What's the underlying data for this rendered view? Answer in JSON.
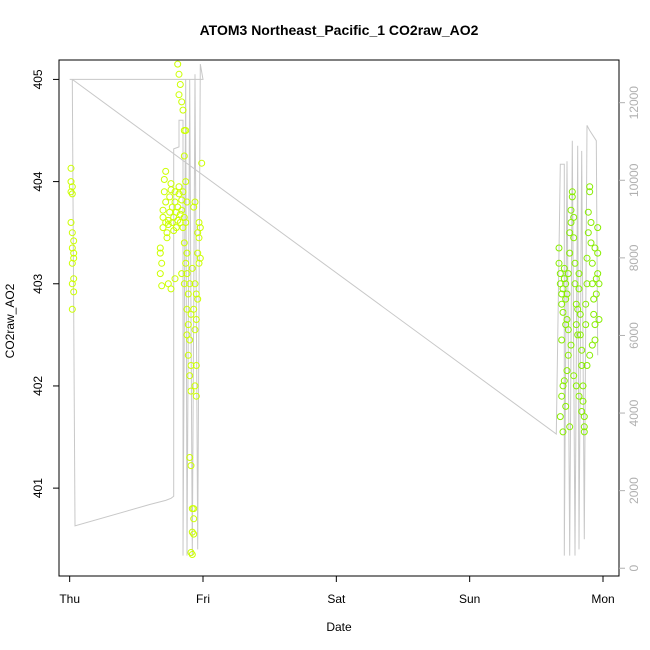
{
  "chart_data": {
    "type": "scatter",
    "title": "ATOM3 Northeast_Pacific_1 CO2raw_AO2",
    "xlabel": "Date",
    "ylabel": "CO2raw_AO2",
    "xlim": [
      -0.08,
      4.12
    ],
    "ylim": [
      400.14,
      405.19
    ],
    "x_ticks": [
      {
        "value": 0,
        "label": "Thu"
      },
      {
        "value": 1,
        "label": "Fri"
      },
      {
        "value": 2,
        "label": "Sat"
      },
      {
        "value": 3,
        "label": "Sun"
      },
      {
        "value": 4,
        "label": "Mon"
      }
    ],
    "y_ticks": [
      401,
      402,
      403,
      404,
      405
    ],
    "y2_ticks": [
      0,
      2000,
      4000,
      6000,
      8000,
      10000,
      12000
    ],
    "y2lim": [
      -200,
      13100
    ],
    "colors": {
      "points_early": "#ccff00",
      "points_late": "#88ee00",
      "line": "#c8c8c8",
      "axis": "#000000",
      "axis_right": "#b0b0b0"
    },
    "secondary_line": [
      [
        0.0,
        405.0
      ],
      [
        0.02,
        405.0
      ],
      [
        0.04,
        400.63
      ],
      [
        0.6,
        400.84
      ],
      [
        0.72,
        400.88
      ],
      [
        0.76,
        400.9
      ],
      [
        0.78,
        400.92
      ],
      [
        0.78,
        404.32
      ],
      [
        0.82,
        404.34
      ],
      [
        0.82,
        404.6
      ],
      [
        0.85,
        404.6
      ],
      [
        0.85,
        400.34
      ],
      [
        0.87,
        405.0
      ],
      [
        0.88,
        400.34
      ],
      [
        0.9,
        405.0
      ],
      [
        0.92,
        400.34
      ],
      [
        0.94,
        405.05
      ],
      [
        0.96,
        400.4
      ],
      [
        0.98,
        405.15
      ],
      [
        1.0,
        405.0
      ],
      [
        0.02,
        405.0
      ],
      [
        3.65,
        401.53
      ],
      [
        3.68,
        404.17
      ],
      [
        3.71,
        404.17
      ],
      [
        3.71,
        400.34
      ],
      [
        3.73,
        404.2
      ],
      [
        3.75,
        400.34
      ],
      [
        3.77,
        404.4
      ],
      [
        3.79,
        400.34
      ],
      [
        3.81,
        404.35
      ],
      [
        3.82,
        400.4
      ],
      [
        3.84,
        404.3
      ],
      [
        3.86,
        400.5
      ],
      [
        3.88,
        404.55
      ],
      [
        3.9,
        404.5
      ],
      [
        3.95,
        404.4
      ],
      [
        3.96,
        402.3
      ]
    ],
    "series": [
      {
        "values": [
          [
            0.01,
            404.13
          ],
          [
            0.01,
            404.0
          ],
          [
            0.02,
            403.95
          ],
          [
            0.02,
            403.88
          ],
          [
            0.01,
            403.6
          ],
          [
            0.02,
            403.5
          ],
          [
            0.03,
            403.42
          ],
          [
            0.02,
            403.35
          ],
          [
            0.03,
            403.3
          ],
          [
            0.02,
            403.2
          ],
          [
            0.03,
            403.05
          ],
          [
            0.02,
            403.0
          ],
          [
            0.03,
            402.92
          ],
          [
            0.02,
            402.75
          ],
          [
            0.03,
            403.25
          ],
          [
            0.01,
            403.9
          ],
          [
            0.68,
            403.35
          ],
          [
            0.68,
            403.3
          ],
          [
            0.69,
            403.2
          ],
          [
            0.68,
            403.1
          ],
          [
            0.69,
            402.98
          ],
          [
            0.7,
            403.55
          ],
          [
            0.7,
            403.65
          ],
          [
            0.7,
            403.72
          ],
          [
            0.71,
            403.9
          ],
          [
            0.71,
            404.02
          ],
          [
            0.72,
            404.1
          ],
          [
            0.72,
            403.8
          ],
          [
            0.72,
            403.6
          ],
          [
            0.73,
            403.5
          ],
          [
            0.73,
            403.45
          ],
          [
            0.74,
            403.58
          ],
          [
            0.74,
            403.62
          ],
          [
            0.75,
            403.7
          ],
          [
            0.75,
            403.85
          ],
          [
            0.76,
            403.92
          ],
          [
            0.76,
            403.98
          ],
          [
            0.77,
            403.75
          ],
          [
            0.77,
            403.6
          ],
          [
            0.78,
            403.52
          ],
          [
            0.78,
            403.65
          ],
          [
            0.79,
            403.8
          ],
          [
            0.79,
            403.9
          ],
          [
            0.8,
            403.7
          ],
          [
            0.8,
            403.55
          ],
          [
            0.81,
            403.62
          ],
          [
            0.81,
            403.75
          ],
          [
            0.82,
            403.88
          ],
          [
            0.82,
            403.95
          ],
          [
            0.83,
            403.68
          ],
          [
            0.83,
            403.6
          ],
          [
            0.84,
            403.72
          ],
          [
            0.84,
            403.82
          ],
          [
            0.85,
            403.9
          ],
          [
            0.85,
            403.55
          ],
          [
            0.86,
            403.65
          ],
          [
            0.86,
            403.0
          ],
          [
            0.74,
            403.0
          ],
          [
            0.76,
            402.95
          ],
          [
            0.79,
            403.05
          ],
          [
            0.84,
            403.1
          ],
          [
            0.81,
            405.15
          ],
          [
            0.82,
            405.05
          ],
          [
            0.83,
            404.95
          ],
          [
            0.82,
            404.85
          ],
          [
            0.84,
            404.78
          ],
          [
            0.85,
            404.7
          ],
          [
            0.86,
            404.5
          ],
          [
            0.87,
            404.5
          ],
          [
            0.86,
            404.25
          ],
          [
            0.87,
            404.0
          ],
          [
            0.88,
            403.8
          ],
          [
            0.87,
            403.6
          ],
          [
            0.86,
            403.4
          ],
          [
            0.88,
            403.3
          ],
          [
            0.87,
            403.2
          ],
          [
            0.88,
            403.1
          ],
          [
            0.89,
            402.9
          ],
          [
            0.88,
            402.75
          ],
          [
            0.89,
            402.6
          ],
          [
            0.88,
            402.5
          ],
          [
            0.9,
            402.45
          ],
          [
            0.89,
            402.3
          ],
          [
            0.91,
            402.2
          ],
          [
            0.9,
            402.1
          ],
          [
            0.91,
            401.95
          ],
          [
            0.9,
            401.3
          ],
          [
            0.91,
            401.22
          ],
          [
            0.92,
            400.8
          ],
          [
            0.93,
            400.8
          ],
          [
            0.93,
            400.7
          ],
          [
            0.92,
            400.57
          ],
          [
            0.93,
            400.55
          ],
          [
            0.91,
            400.37
          ],
          [
            0.92,
            400.35
          ],
          [
            0.94,
            402.55
          ],
          [
            0.95,
            402.2
          ],
          [
            0.94,
            402.0
          ],
          [
            0.95,
            401.9
          ],
          [
            0.94,
            403.0
          ],
          [
            0.95,
            402.9
          ],
          [
            0.96,
            402.85
          ],
          [
            0.96,
            403.3
          ],
          [
            0.97,
            403.2
          ],
          [
            0.96,
            403.5
          ],
          [
            0.97,
            403.45
          ],
          [
            0.98,
            403.55
          ],
          [
            0.97,
            403.6
          ],
          [
            0.98,
            403.25
          ],
          [
            0.99,
            404.18
          ],
          [
            0.93,
            403.75
          ],
          [
            0.94,
            403.8
          ],
          [
            0.9,
            403.0
          ],
          [
            0.92,
            403.15
          ],
          [
            0.93,
            402.75
          ],
          [
            0.95,
            402.65
          ],
          [
            0.91,
            402.7
          ]
        ]
      },
      {
        "values": [
          [
            3.67,
            403.35
          ],
          [
            3.67,
            403.2
          ],
          [
            3.68,
            403.1
          ],
          [
            3.68,
            403.0
          ],
          [
            3.69,
            402.9
          ],
          [
            3.69,
            402.8
          ],
          [
            3.7,
            402.72
          ],
          [
            3.7,
            402.95
          ],
          [
            3.71,
            403.05
          ],
          [
            3.71,
            403.15
          ],
          [
            3.72,
            403.0
          ],
          [
            3.72,
            402.85
          ],
          [
            3.73,
            402.9
          ],
          [
            3.73,
            402.65
          ],
          [
            3.74,
            402.55
          ],
          [
            3.74,
            403.1
          ],
          [
            3.75,
            403.3
          ],
          [
            3.75,
            403.5
          ],
          [
            3.76,
            403.6
          ],
          [
            3.76,
            403.72
          ],
          [
            3.77,
            403.85
          ],
          [
            3.77,
            403.9
          ],
          [
            3.78,
            403.65
          ],
          [
            3.78,
            403.45
          ],
          [
            3.79,
            403.2
          ],
          [
            3.79,
            403.0
          ],
          [
            3.8,
            402.8
          ],
          [
            3.8,
            402.6
          ],
          [
            3.81,
            402.5
          ],
          [
            3.81,
            402.75
          ],
          [
            3.82,
            402.95
          ],
          [
            3.82,
            403.1
          ],
          [
            3.83,
            402.7
          ],
          [
            3.83,
            402.5
          ],
          [
            3.84,
            402.35
          ],
          [
            3.84,
            402.2
          ],
          [
            3.85,
            402.0
          ],
          [
            3.85,
            401.85
          ],
          [
            3.86,
            401.7
          ],
          [
            3.86,
            401.55
          ],
          [
            3.87,
            402.6
          ],
          [
            3.87,
            402.8
          ],
          [
            3.88,
            403.0
          ],
          [
            3.88,
            403.25
          ],
          [
            3.89,
            403.5
          ],
          [
            3.89,
            403.7
          ],
          [
            3.9,
            403.9
          ],
          [
            3.9,
            403.95
          ],
          [
            3.91,
            403.6
          ],
          [
            3.91,
            403.4
          ],
          [
            3.92,
            403.2
          ],
          [
            3.92,
            403.0
          ],
          [
            3.93,
            402.85
          ],
          [
            3.93,
            402.7
          ],
          [
            3.94,
            402.6
          ],
          [
            3.94,
            402.45
          ],
          [
            3.95,
            402.9
          ],
          [
            3.95,
            403.05
          ],
          [
            3.96,
            403.3
          ],
          [
            3.96,
            403.55
          ],
          [
            3.97,
            403.0
          ],
          [
            3.97,
            402.65
          ],
          [
            3.68,
            401.7
          ],
          [
            3.69,
            401.9
          ],
          [
            3.7,
            402.0
          ],
          [
            3.71,
            402.05
          ],
          [
            3.72,
            401.8
          ],
          [
            3.73,
            402.15
          ],
          [
            3.74,
            402.3
          ],
          [
            3.75,
            401.6
          ],
          [
            3.76,
            402.4
          ],
          [
            3.7,
            401.55
          ],
          [
            3.69,
            402.45
          ],
          [
            3.72,
            402.6
          ],
          [
            3.78,
            402.1
          ],
          [
            3.8,
            402.0
          ],
          [
            3.82,
            401.9
          ],
          [
            3.84,
            401.75
          ],
          [
            3.86,
            401.6
          ],
          [
            3.88,
            402.2
          ],
          [
            3.9,
            402.3
          ],
          [
            3.92,
            402.4
          ],
          [
            3.94,
            403.35
          ],
          [
            3.96,
            403.1
          ]
        ]
      }
    ]
  }
}
